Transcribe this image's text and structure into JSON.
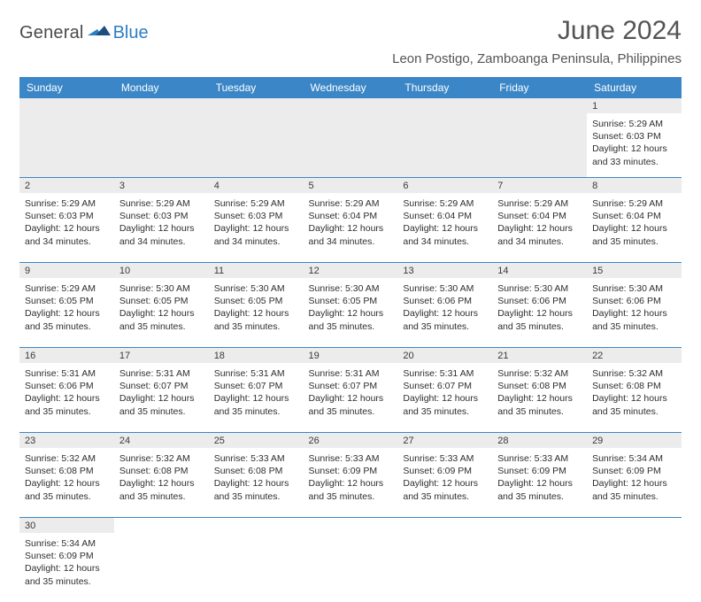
{
  "logo": {
    "word1": "General",
    "word2": "Blue",
    "color_text": "#4a4a4a",
    "color_accent": "#2b7fc3"
  },
  "title": "June 2024",
  "subtitle": "Leon Postigo, Zamboanga Peninsula, Philippines",
  "colors": {
    "header_bg": "#3b86c6",
    "header_fg": "#ffffff",
    "daynum_bg": "#ececec",
    "border": "#3b86c6",
    "text": "#2e2e2e"
  },
  "weekdays": [
    "Sunday",
    "Monday",
    "Tuesday",
    "Wednesday",
    "Thursday",
    "Friday",
    "Saturday"
  ],
  "lines_template": {
    "sunrise_prefix": "Sunrise: ",
    "sunset_prefix": "Sunset: ",
    "daylight_prefix": "Daylight: ",
    "daylight_unit_hours": " hours",
    "and": "and ",
    "minutes_suffix": " minutes."
  },
  "weeks": [
    [
      null,
      null,
      null,
      null,
      null,
      null,
      {
        "n": "1",
        "sunrise": "5:29 AM",
        "sunset": "6:03 PM",
        "dh": "12",
        "dm": "33"
      }
    ],
    [
      {
        "n": "2",
        "sunrise": "5:29 AM",
        "sunset": "6:03 PM",
        "dh": "12",
        "dm": "34"
      },
      {
        "n": "3",
        "sunrise": "5:29 AM",
        "sunset": "6:03 PM",
        "dh": "12",
        "dm": "34"
      },
      {
        "n": "4",
        "sunrise": "5:29 AM",
        "sunset": "6:03 PM",
        "dh": "12",
        "dm": "34"
      },
      {
        "n": "5",
        "sunrise": "5:29 AM",
        "sunset": "6:04 PM",
        "dh": "12",
        "dm": "34"
      },
      {
        "n": "6",
        "sunrise": "5:29 AM",
        "sunset": "6:04 PM",
        "dh": "12",
        "dm": "34"
      },
      {
        "n": "7",
        "sunrise": "5:29 AM",
        "sunset": "6:04 PM",
        "dh": "12",
        "dm": "34"
      },
      {
        "n": "8",
        "sunrise": "5:29 AM",
        "sunset": "6:04 PM",
        "dh": "12",
        "dm": "35"
      }
    ],
    [
      {
        "n": "9",
        "sunrise": "5:29 AM",
        "sunset": "6:05 PM",
        "dh": "12",
        "dm": "35"
      },
      {
        "n": "10",
        "sunrise": "5:30 AM",
        "sunset": "6:05 PM",
        "dh": "12",
        "dm": "35"
      },
      {
        "n": "11",
        "sunrise": "5:30 AM",
        "sunset": "6:05 PM",
        "dh": "12",
        "dm": "35"
      },
      {
        "n": "12",
        "sunrise": "5:30 AM",
        "sunset": "6:05 PM",
        "dh": "12",
        "dm": "35"
      },
      {
        "n": "13",
        "sunrise": "5:30 AM",
        "sunset": "6:06 PM",
        "dh": "12",
        "dm": "35"
      },
      {
        "n": "14",
        "sunrise": "5:30 AM",
        "sunset": "6:06 PM",
        "dh": "12",
        "dm": "35"
      },
      {
        "n": "15",
        "sunrise": "5:30 AM",
        "sunset": "6:06 PM",
        "dh": "12",
        "dm": "35"
      }
    ],
    [
      {
        "n": "16",
        "sunrise": "5:31 AM",
        "sunset": "6:06 PM",
        "dh": "12",
        "dm": "35"
      },
      {
        "n": "17",
        "sunrise": "5:31 AM",
        "sunset": "6:07 PM",
        "dh": "12",
        "dm": "35"
      },
      {
        "n": "18",
        "sunrise": "5:31 AM",
        "sunset": "6:07 PM",
        "dh": "12",
        "dm": "35"
      },
      {
        "n": "19",
        "sunrise": "5:31 AM",
        "sunset": "6:07 PM",
        "dh": "12",
        "dm": "35"
      },
      {
        "n": "20",
        "sunrise": "5:31 AM",
        "sunset": "6:07 PM",
        "dh": "12",
        "dm": "35"
      },
      {
        "n": "21",
        "sunrise": "5:32 AM",
        "sunset": "6:08 PM",
        "dh": "12",
        "dm": "35"
      },
      {
        "n": "22",
        "sunrise": "5:32 AM",
        "sunset": "6:08 PM",
        "dh": "12",
        "dm": "35"
      }
    ],
    [
      {
        "n": "23",
        "sunrise": "5:32 AM",
        "sunset": "6:08 PM",
        "dh": "12",
        "dm": "35"
      },
      {
        "n": "24",
        "sunrise": "5:32 AM",
        "sunset": "6:08 PM",
        "dh": "12",
        "dm": "35"
      },
      {
        "n": "25",
        "sunrise": "5:33 AM",
        "sunset": "6:08 PM",
        "dh": "12",
        "dm": "35"
      },
      {
        "n": "26",
        "sunrise": "5:33 AM",
        "sunset": "6:09 PM",
        "dh": "12",
        "dm": "35"
      },
      {
        "n": "27",
        "sunrise": "5:33 AM",
        "sunset": "6:09 PM",
        "dh": "12",
        "dm": "35"
      },
      {
        "n": "28",
        "sunrise": "5:33 AM",
        "sunset": "6:09 PM",
        "dh": "12",
        "dm": "35"
      },
      {
        "n": "29",
        "sunrise": "5:34 AM",
        "sunset": "6:09 PM",
        "dh": "12",
        "dm": "35"
      }
    ],
    [
      {
        "n": "30",
        "sunrise": "5:34 AM",
        "sunset": "6:09 PM",
        "dh": "12",
        "dm": "35"
      },
      null,
      null,
      null,
      null,
      null,
      null
    ]
  ]
}
